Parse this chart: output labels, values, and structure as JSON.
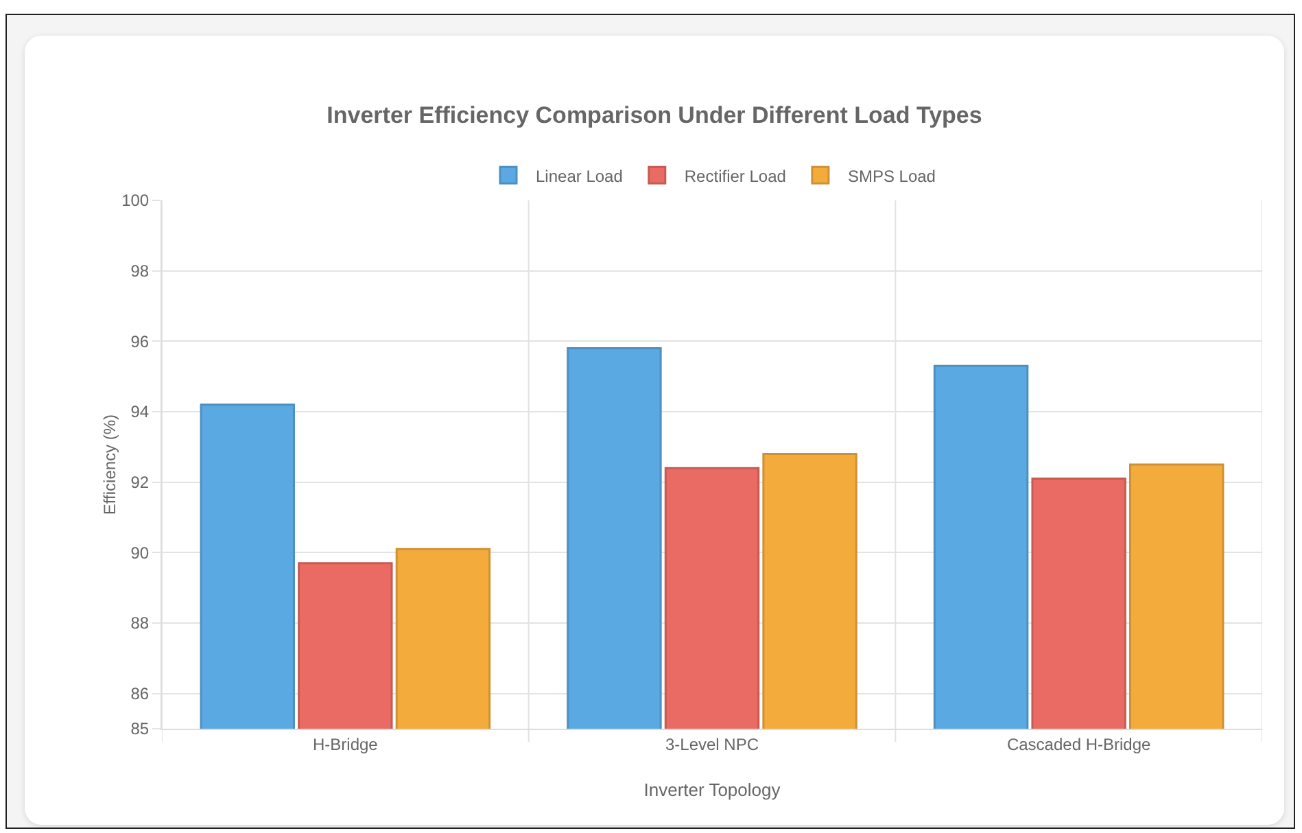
{
  "chart_data": {
    "type": "bar",
    "title": "Inverter Efficiency Comparison Under Different Load Types",
    "xlabel": "Inverter Topology",
    "ylabel": "Efficiency (%)",
    "categories": [
      "H-Bridge",
      "3-Level NPC",
      "Cascaded H-Bridge"
    ],
    "series": [
      {
        "name": "Linear Load",
        "color": "#5aa9e2",
        "values": [
          94.2,
          95.8,
          95.3
        ]
      },
      {
        "name": "Rectifier Load",
        "color": "#e96b63",
        "values": [
          89.7,
          92.4,
          92.1
        ]
      },
      {
        "name": "SMPS Load",
        "color": "#f3ab3c",
        "values": [
          90.1,
          92.8,
          92.5
        ]
      }
    ],
    "ylim": [
      85,
      100
    ],
    "yticks": [
      85,
      86,
      88,
      90,
      92,
      94,
      96,
      98,
      100
    ],
    "grid": true,
    "legend": "top"
  }
}
